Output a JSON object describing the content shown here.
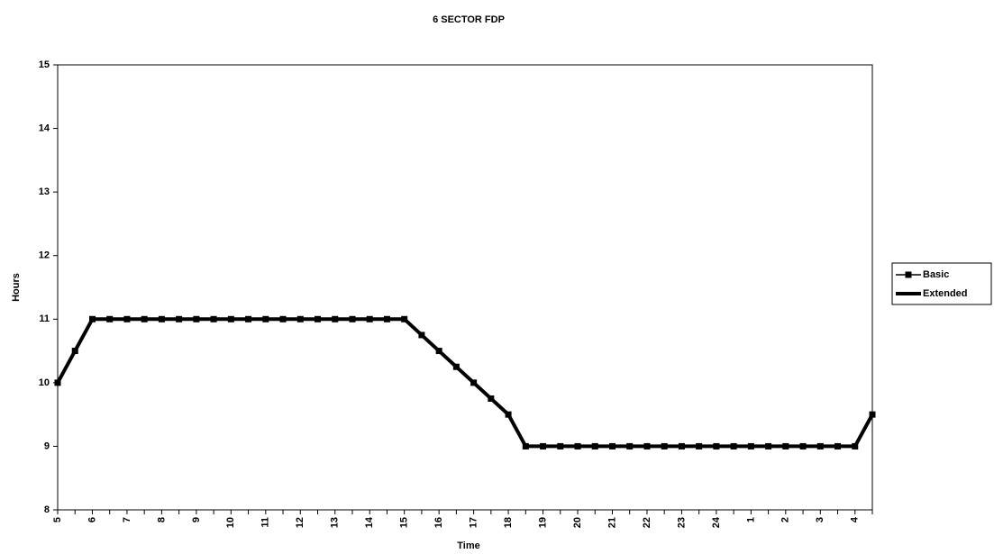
{
  "chart_data": {
    "type": "line",
    "title": "6 SECTOR FDP",
    "x_label": "Time",
    "y_label": "Hours",
    "categories": [
      "5",
      null,
      "6",
      null,
      "7",
      null,
      "8",
      null,
      "9",
      null,
      "10",
      null,
      "11",
      null,
      "12",
      null,
      "13",
      null,
      "14",
      null,
      "15",
      null,
      "16",
      null,
      "17",
      null,
      "18",
      null,
      "19",
      null,
      "20",
      null,
      "21",
      null,
      "22",
      null,
      "23",
      null,
      "24",
      null,
      "1",
      null,
      "2",
      null,
      "3",
      null,
      "4",
      null
    ],
    "series": [
      {
        "name": "Basic",
        "color": "#000000",
        "marker": "square",
        "values": [
          10,
          10.5,
          11,
          11,
          11,
          11,
          11,
          11,
          11,
          11,
          11,
          11,
          11,
          11,
          11,
          11,
          11,
          11,
          11,
          11,
          11,
          10.75,
          10.5,
          10.25,
          10,
          9.75,
          9.5,
          9,
          9,
          9,
          9,
          9,
          9,
          9,
          9,
          9,
          9,
          9,
          9,
          9,
          9,
          9,
          9,
          9,
          9,
          9,
          9,
          9.5
        ]
      },
      {
        "name": "Extended",
        "color": "#000000",
        "values": [
          10,
          10.5,
          11,
          11,
          11,
          11,
          11,
          11,
          11,
          11,
          11,
          11,
          11,
          11,
          11,
          11,
          11,
          11,
          11,
          11,
          11,
          10.75,
          10.5,
          10.25,
          10,
          9.75,
          9.5,
          9,
          9,
          9,
          9,
          9,
          9,
          9,
          9,
          9,
          9,
          9,
          9,
          9,
          9,
          9,
          9,
          9,
          9,
          9,
          9,
          9.5
        ]
      }
    ],
    "ylim": [
      8,
      15
    ],
    "yticks": [
      8,
      9,
      10,
      11,
      12,
      13,
      14,
      15
    ],
    "grid": false,
    "legend": "right"
  }
}
